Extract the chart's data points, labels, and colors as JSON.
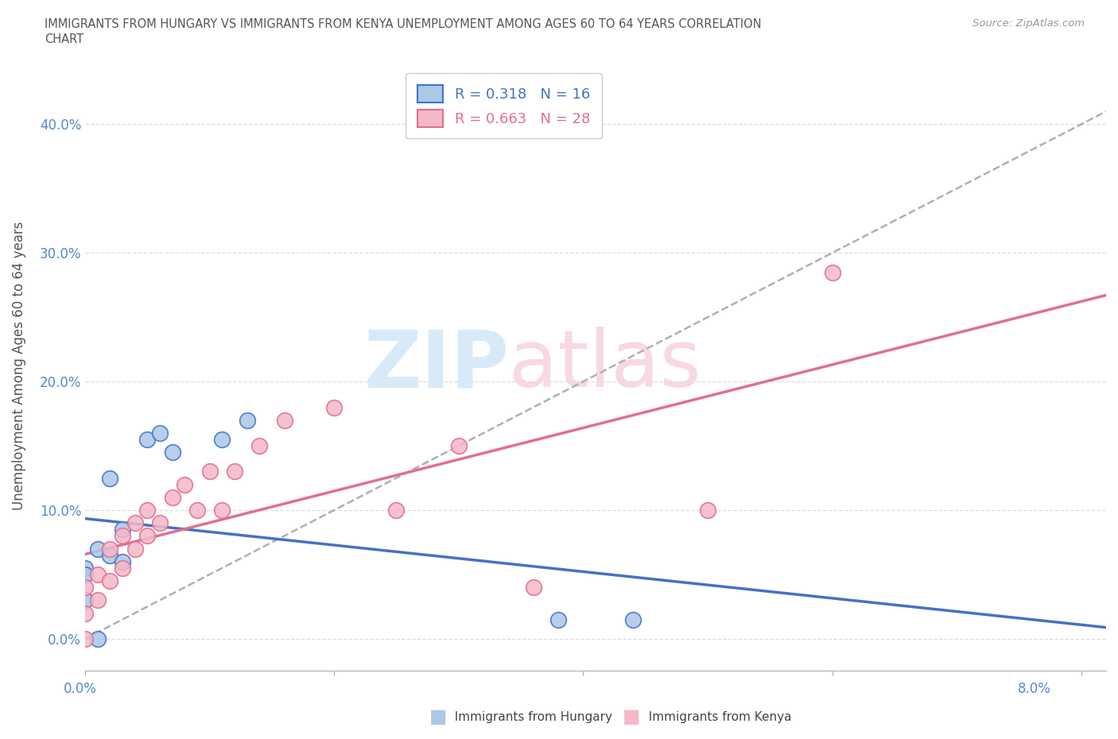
{
  "title_line1": "IMMIGRANTS FROM HUNGARY VS IMMIGRANTS FROM KENYA UNEMPLOYMENT AMONG AGES 60 TO 64 YEARS CORRELATION",
  "title_line2": "CHART",
  "source_text": "Source: ZipAtlas.com",
  "ylabel": "Unemployment Among Ages 60 to 64 years",
  "xlim": [
    0.0,
    0.082
  ],
  "ylim": [
    -0.025,
    0.45
  ],
  "yticks": [
    0.0,
    0.1,
    0.2,
    0.3,
    0.4
  ],
  "ytick_labels": [
    "0.0%",
    "10.0%",
    "20.0%",
    "30.0%",
    "40.0%"
  ],
  "hungary_R": "0.318",
  "hungary_N": "16",
  "kenya_R": "0.663",
  "kenya_N": "28",
  "hungary_color": "#aac8e8",
  "kenya_color": "#f4b8c8",
  "hungary_edge_color": "#4472c4",
  "kenya_edge_color": "#e07090",
  "hungary_line_color": "#4472c4",
  "kenya_line_color": "#e07090",
  "dashed_line_color": "#b0b0b0",
  "grid_color": "#dddddd",
  "watermark_blue": "#d8eaf8",
  "watermark_pink": "#f8d8e4",
  "hungary_x": [
    0.0,
    0.0,
    0.0,
    0.001,
    0.001,
    0.002,
    0.002,
    0.003,
    0.003,
    0.005,
    0.006,
    0.007,
    0.011,
    0.013,
    0.038,
    0.044
  ],
  "hungary_y": [
    0.055,
    0.03,
    0.05,
    0.0,
    0.07,
    0.065,
    0.125,
    0.06,
    0.085,
    0.155,
    0.16,
    0.145,
    0.155,
    0.17,
    0.015,
    0.015
  ],
  "kenya_x": [
    0.0,
    0.0,
    0.0,
    0.001,
    0.001,
    0.002,
    0.002,
    0.003,
    0.003,
    0.004,
    0.004,
    0.005,
    0.005,
    0.006,
    0.007,
    0.008,
    0.009,
    0.01,
    0.011,
    0.012,
    0.014,
    0.016,
    0.02,
    0.025,
    0.03,
    0.036,
    0.05,
    0.06
  ],
  "kenya_y": [
    0.0,
    0.02,
    0.04,
    0.03,
    0.05,
    0.045,
    0.07,
    0.055,
    0.08,
    0.07,
    0.09,
    0.08,
    0.1,
    0.09,
    0.11,
    0.12,
    0.1,
    0.13,
    0.1,
    0.13,
    0.15,
    0.17,
    0.18,
    0.1,
    0.15,
    0.04,
    0.1,
    0.285
  ]
}
